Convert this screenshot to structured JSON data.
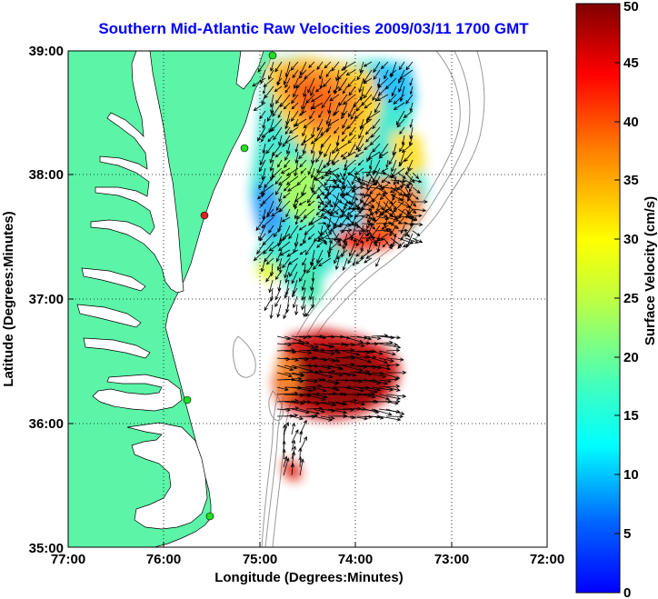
{
  "title": "Southern Mid-Atlantic Raw Velocities 2009/03/11 1700 GMT",
  "chart_data": {
    "type": "heatmap",
    "xlabel": "Longitude (Degrees:Minutes)",
    "ylabel": "Latitude (Degrees:Minutes)",
    "xlim": [
      -77,
      -72
    ],
    "ylim": [
      35,
      39
    ],
    "x_ticks": [
      "77:00",
      "76:00",
      "75:00",
      "74:00",
      "73:00",
      "72:00"
    ],
    "y_ticks": [
      "35:00",
      "36:00",
      "37:00",
      "38:00",
      "39:00"
    ],
    "grid": "dotted",
    "colorbar": {
      "label": "Surface Velocity (cm/s)",
      "range": [
        0,
        50
      ],
      "ticks": [
        "0",
        "5",
        "10",
        "15",
        "20",
        "25",
        "30",
        "35",
        "40",
        "45",
        "50"
      ],
      "colormap": "jet"
    },
    "colors": {
      "land": "#5cf5a8",
      "background": "#ffffff",
      "title": "#0000ff"
    }
  }
}
